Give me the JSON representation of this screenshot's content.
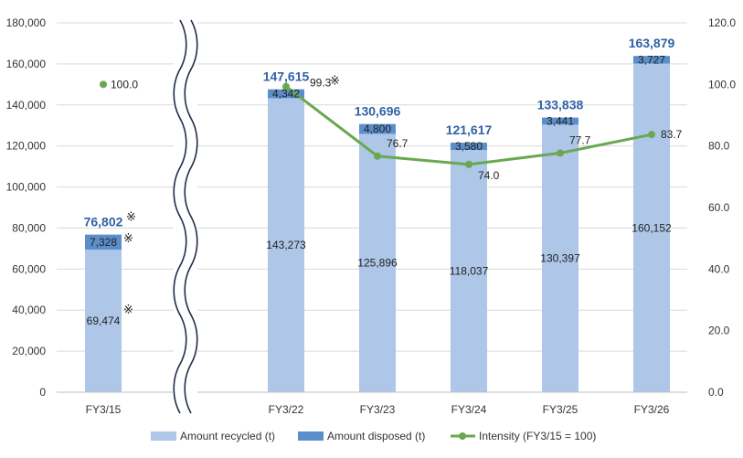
{
  "chart_data": {
    "type": "bar",
    "stacked": true,
    "categories": [
      "FY3/15",
      "FY3/22",
      "FY3/23",
      "FY3/24",
      "FY3/25",
      "FY3/26"
    ],
    "series": [
      {
        "name": "Amount recycled (t)",
        "type": "bar",
        "axis": "left",
        "color": "#AEC6E8",
        "values": [
          69474,
          143273,
          125896,
          118037,
          130397,
          160152
        ],
        "labels": [
          "69,474",
          "143,273",
          "125,896",
          "118,037",
          "130,397",
          "160,152"
        ]
      },
      {
        "name": "Amount disposed (t)",
        "type": "bar",
        "axis": "left",
        "color": "#5B8FCC",
        "values": [
          7328,
          4342,
          4800,
          3580,
          3441,
          3727
        ],
        "labels": [
          "7,328",
          "4,342",
          "4,800",
          "3,580",
          "3,441",
          "3,727"
        ]
      },
      {
        "name": "Intensity (FY3/15 = 100)",
        "type": "line",
        "axis": "right",
        "color": "#6AA84F",
        "values": [
          100.0,
          99.3,
          76.7,
          74.0,
          77.7,
          83.7
        ],
        "labels": [
          "100.0",
          "99.3",
          "76.7",
          "74.0",
          "77.7",
          "83.7"
        ]
      }
    ],
    "totals": [
      76802,
      147615,
      130696,
      121617,
      133838,
      163879
    ],
    "total_labels": [
      "76,802",
      "147,615",
      "130,696",
      "121,617",
      "133,838",
      "163,879"
    ],
    "ylim_left": [
      0,
      180000
    ],
    "ylim_right": [
      0,
      120
    ],
    "left_ticks": [
      0,
      20000,
      40000,
      60000,
      80000,
      100000,
      120000,
      140000,
      160000,
      180000
    ],
    "left_tick_labels": [
      "0",
      "20,000",
      "40,000",
      "60,000",
      "80,000",
      "100,000",
      "120,000",
      "140,000",
      "160,000",
      "180,000"
    ],
    "right_ticks": [
      0,
      20,
      40,
      60,
      80,
      100,
      120
    ],
    "right_tick_labels": [
      "0.0",
      "20.0",
      "40.0",
      "60.0",
      "80.0",
      "100.0",
      "120.0"
    ],
    "annotation_mark": "※",
    "axis_break": "between FY3/15 and FY3/22",
    "grid": true,
    "legend_position": "bottom",
    "title": "",
    "xlabel": "",
    "ylabel": ""
  }
}
